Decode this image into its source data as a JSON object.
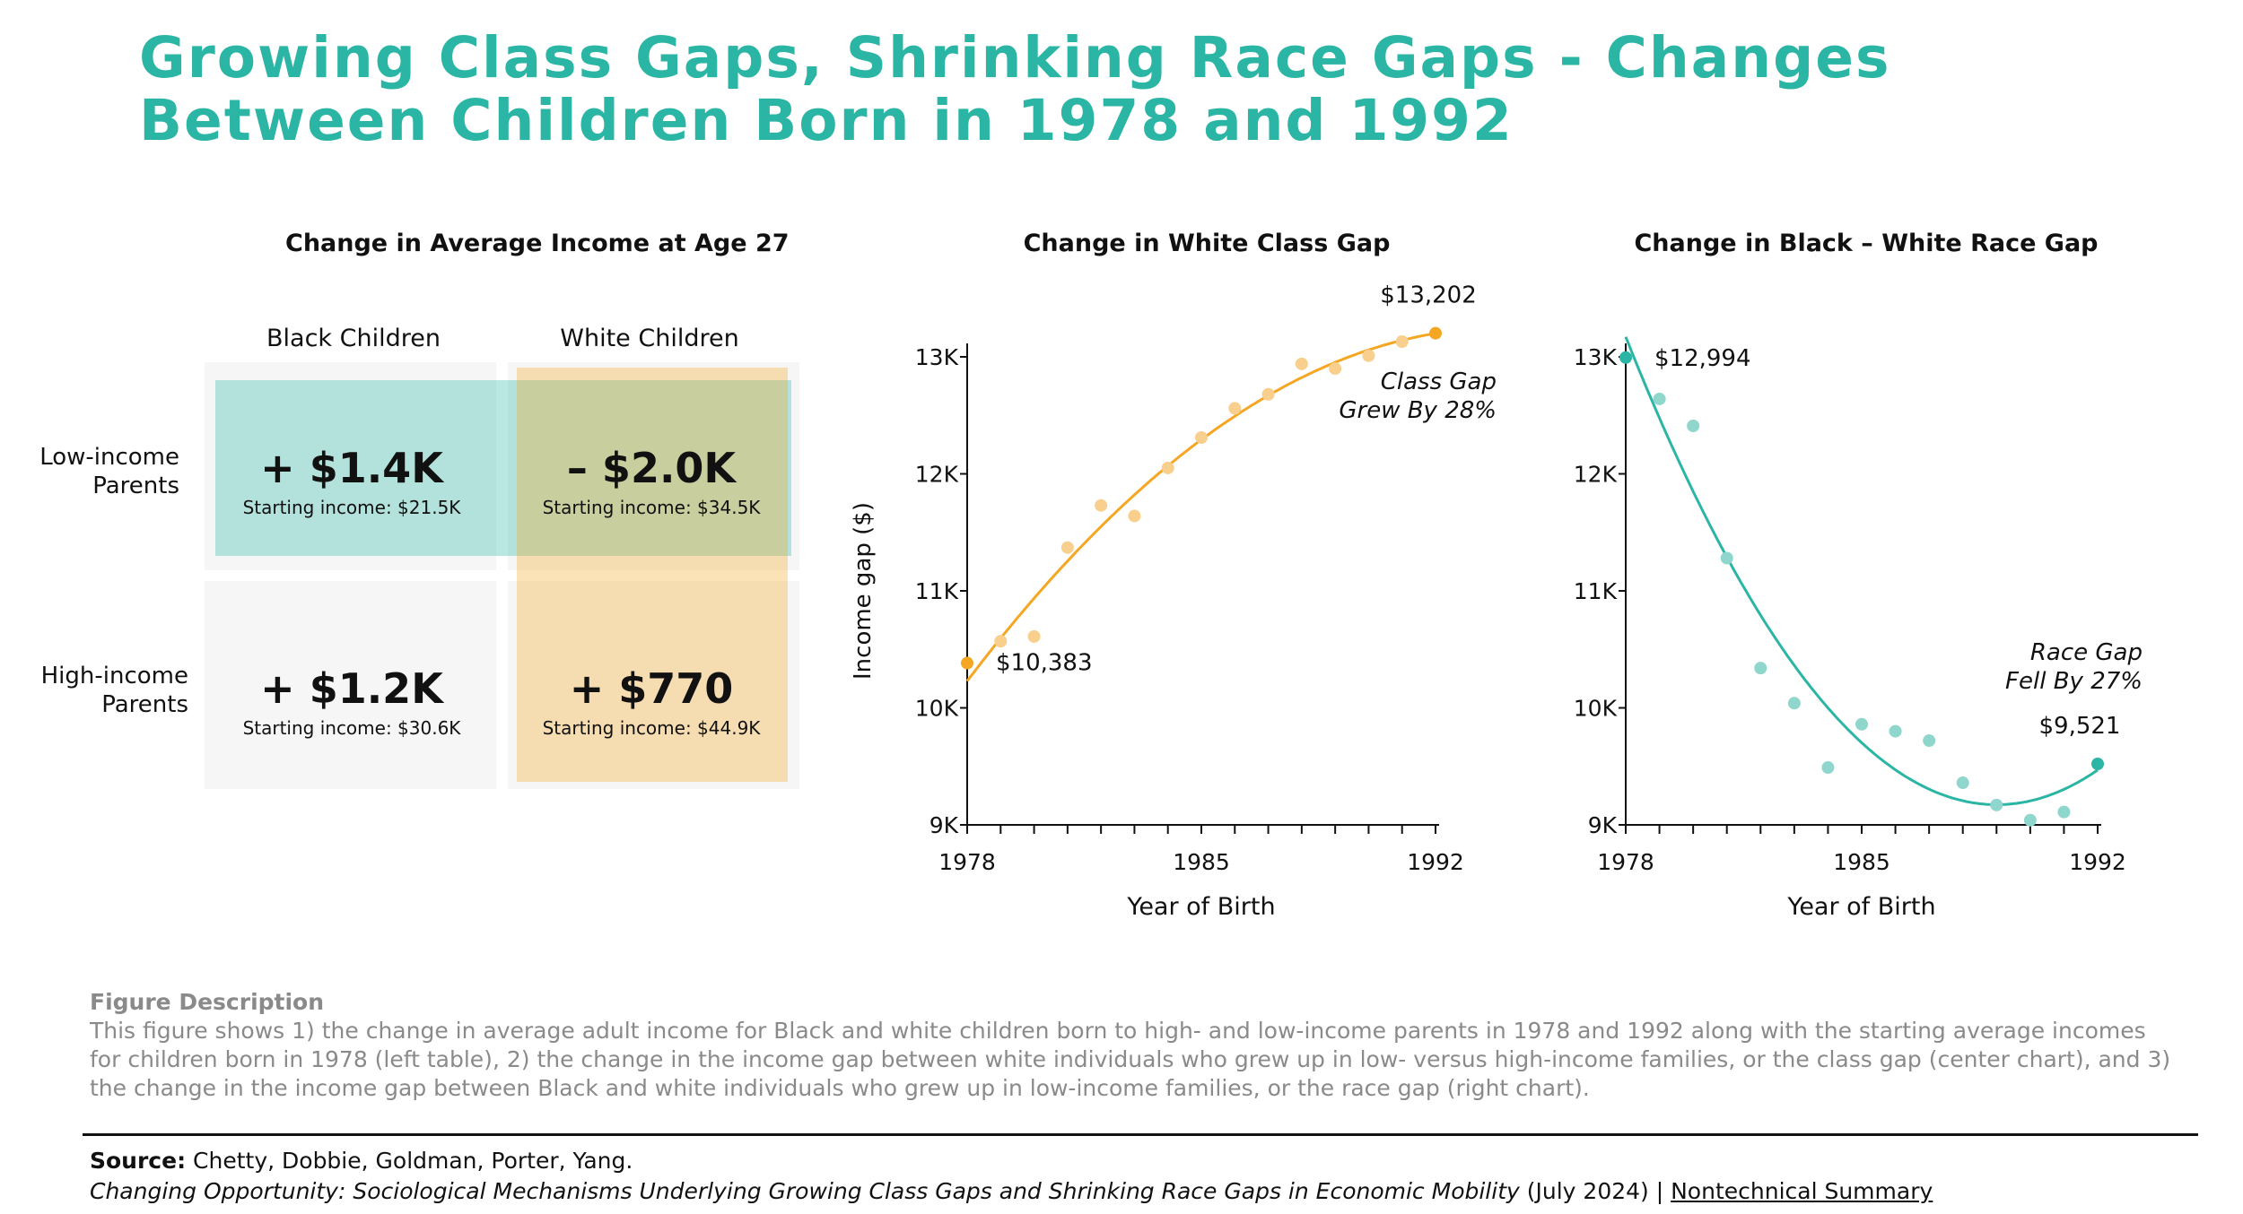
{
  "title": "Growing Class Gaps, Shrinking Race Gaps - Changes Between Children Born in 1978 and 1992",
  "colors": {
    "teal": "#2bb5a4",
    "orange": "#f5a623",
    "teal_light": "#8fd6cc",
    "orange_light": "#f8cf8c"
  },
  "table": {
    "title": "Change in Average Income at Age 27",
    "col_black": "Black Children",
    "col_white": "White Children",
    "row_low": "Low-income Parents",
    "row_high": "High-income Parents",
    "low_black": {
      "value": "+ $1.4K",
      "start": "Starting income: $21.5K"
    },
    "low_white": {
      "value": "– $2.0K",
      "start": "Starting income: $34.5K"
    },
    "high_black": {
      "value": "+ $1.2K",
      "start": "Starting income: $30.6K"
    },
    "high_white": {
      "value": "+ $770",
      "start": "Starting income: $44.9K"
    }
  },
  "chart_data": [
    {
      "type": "scatter",
      "title": "Change in White Class Gap",
      "xlabel": "Year of Birth",
      "ylabel": "Income gap ($)",
      "xlim": [
        1978,
        1992
      ],
      "ylim": [
        9000,
        13000
      ],
      "xticks": [
        1978,
        1985,
        1992
      ],
      "yticks": [
        9000,
        10000,
        11000,
        12000,
        13000
      ],
      "ytick_labels": [
        "9K",
        "10K",
        "11K",
        "12K",
        "13K"
      ],
      "x": [
        1978,
        1979,
        1980,
        1981,
        1982,
        1983,
        1984,
        1985,
        1986,
        1987,
        1988,
        1989,
        1990,
        1991,
        1992
      ],
      "y": [
        10383,
        10570,
        10610,
        11370,
        11730,
        11640,
        12050,
        12310,
        12560,
        12680,
        12940,
        12900,
        13010,
        13130,
        13202
      ],
      "trend": "increasing curve",
      "labels": {
        "start": "$10,383",
        "end": "$13,202"
      },
      "annotation": [
        "Class Gap",
        "Grew By 28%"
      ]
    },
    {
      "type": "scatter",
      "title": "Change in Black – White Race Gap",
      "xlabel": "Year of Birth",
      "xlim": [
        1978,
        1992
      ],
      "ylim": [
        9000,
        13000
      ],
      "xticks": [
        1978,
        1985,
        1992
      ],
      "yticks": [
        9000,
        10000,
        11000,
        12000,
        13000
      ],
      "ytick_labels": [
        "9K",
        "10K",
        "11K",
        "12K",
        "13K"
      ],
      "x": [
        1978,
        1979,
        1980,
        1981,
        1982,
        1983,
        1984,
        1985,
        1986,
        1987,
        1988,
        1989,
        1990,
        1991,
        1992
      ],
      "y": [
        12994,
        12640,
        12410,
        11280,
        10340,
        10040,
        9490,
        9860,
        9800,
        9720,
        9360,
        9170,
        9040,
        9110,
        9521
      ],
      "trend": "decreasing curve",
      "labels": {
        "start": "$12,994",
        "end": "$9,521"
      },
      "annotation": [
        "Race Gap",
        "Fell By 27%"
      ]
    }
  ],
  "description": {
    "heading": "Figure  Description",
    "text": "This figure shows 1) the change in average adult income for Black and white children born to high- and low-income parents in 1978 and 1992 along with the starting average incomes for children born in 1978 (left table), 2) the change in the income gap between white individuals who grew up in low- versus high-income families, or the class gap (center chart), and 3) the change in the income gap between Black and white individuals who grew up in low-income families, or the race gap (right chart)."
  },
  "source": {
    "label": "Source:",
    "authors": "Chetty, Dobbie, Goldman, Porter, Yang.",
    "paper": "Changing Opportunity: Sociological Mechanisms Underlying Growing Class Gaps and Shrinking Race Gaps in Economic Mobility",
    "date": "(July 2024) |",
    "link": "Nontechnical Summary"
  }
}
